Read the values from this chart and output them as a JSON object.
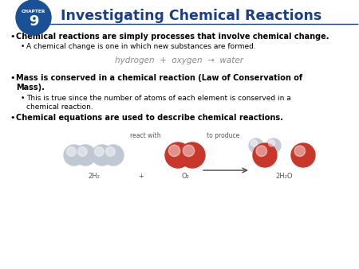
{
  "title": "Investigating Chemical Reactions",
  "chapter_label": "CHAPTER",
  "chapter_number": "9",
  "chapter_badge_color": "#1a5096",
  "title_color": "#1a3e8c",
  "header_line_color": "#1a3e8c",
  "background_color": "#ffffff",
  "bullet1_bold": "Chemical reactions are simply processes that involve chemical change.",
  "bullet1_sub": "A chemical change is one in which new substances are formed.",
  "equation_text": "hydrogen  +  oxygen  →  water",
  "bullet2_bold1": "Mass is conserved in a chemical reaction (Law of Conservation of",
  "bullet2_bold2": "Mass).",
  "bullet2_sub1": "This is true since the number of atoms of each element is conserved in a",
  "bullet2_sub2": "chemical reaction.",
  "bullet3_bold": "Chemical equations are used to describe chemical reactions.",
  "equation_color": "#888888",
  "react_label": "react with",
  "produce_label": "to produce",
  "formula_2h2": "2H₂",
  "formula_plus": "+",
  "formula_o2": "O₂",
  "formula_2h2o": "2H₂O",
  "h2_color": "#c0c8d4",
  "o2_color": "#c8372a",
  "h2o_o_color": "#c8372a",
  "h2o_h_color": "#c8ccd8"
}
